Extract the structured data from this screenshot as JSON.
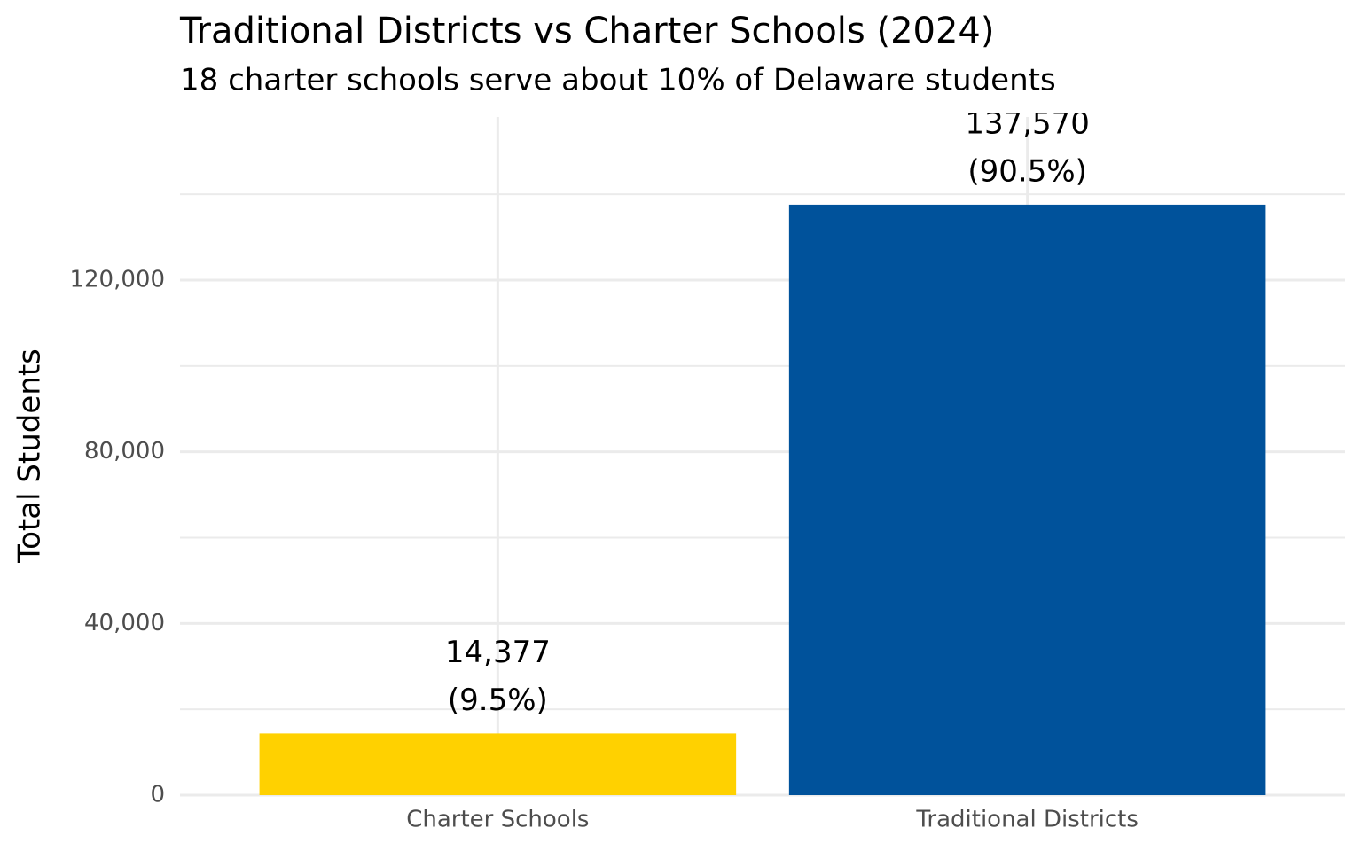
{
  "chart_data": {
    "type": "bar",
    "title": "Traditional Districts vs Charter Schools (2024)",
    "subtitle": "18 charter schools serve about 10% of Delaware students",
    "y_label": "Total Students",
    "categories": [
      "Charter Schools",
      "Traditional Districts"
    ],
    "values": [
      14377,
      137570
    ],
    "value_labels": [
      "14,377",
      "137,570"
    ],
    "shares": [
      9.5,
      90.5
    ],
    "share_labels": [
      "(9.5%)",
      "(90.5%)"
    ],
    "colors": [
      "#FFD100",
      "#00529B"
    ],
    "ylim": [
      0,
      158000
    ],
    "yticks": [
      0,
      {
        "value": 40000,
        "label": "40,000"
      },
      {
        "value": 80000,
        "label": "80,000"
      },
      {
        "value": 120000,
        "label": "120,000"
      }
    ],
    "minor_yticks": [
      20000,
      60000,
      100000,
      140000
    ],
    "grid": true
  }
}
